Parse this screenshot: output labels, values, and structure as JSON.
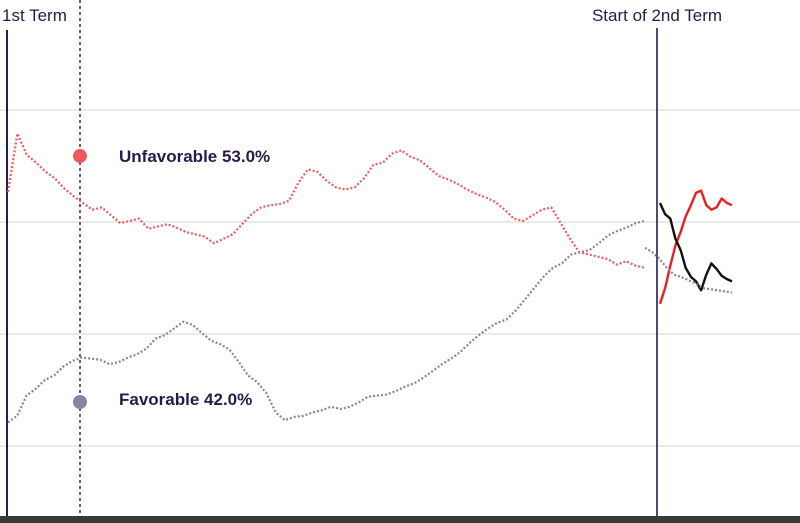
{
  "chart_data": {
    "type": "line",
    "title": "",
    "xlabel": "",
    "ylabel": "",
    "grid": true,
    "markers": [
      {
        "label": "1st Term"
      },
      {
        "label": "Start of 2nd Term"
      }
    ],
    "callouts": [
      {
        "series": "Unfavorable",
        "text": "Unfavorable 53.0%"
      },
      {
        "series": "Favorable",
        "text": "Favorable 42.0%"
      }
    ],
    "series": [
      {
        "name": "Unfavorable",
        "term": "first",
        "color": "#f05a5a",
        "style": "dotted",
        "values": [
          55.2,
          60.4,
          58.5,
          57.8,
          57.0,
          56.4,
          55.5,
          54.8,
          54.2,
          53.6,
          53.8,
          53.1,
          52.4,
          52.6,
          52.8,
          51.9,
          52.1,
          52.3,
          52.0,
          51.6,
          51.4,
          51.2,
          50.6,
          51.0,
          51.4,
          52.3,
          53.2,
          53.8,
          54.0,
          54.1,
          54.4,
          56.0,
          57.2,
          57.0,
          56.2,
          55.6,
          55.4,
          55.6,
          56.4,
          57.6,
          57.8,
          58.6,
          58.9,
          58.3,
          58.0,
          57.3,
          56.6,
          56.3,
          55.9,
          55.4,
          55.0,
          54.7,
          54.3,
          53.6,
          52.8,
          52.6,
          53.1,
          53.6,
          53.8,
          52.4,
          51.0,
          49.8,
          49.6,
          49.4,
          49.2,
          48.7,
          49.0,
          48.6,
          48.4
        ]
      },
      {
        "name": "Favorable",
        "term": "first",
        "color": "#8f7fa3",
        "style": "dotted",
        "values": [
          34.6,
          35.2,
          37.0,
          37.6,
          38.4,
          38.8,
          39.6,
          40.1,
          40.4,
          40.3,
          40.2,
          39.8,
          40.0,
          40.4,
          40.7,
          41.2,
          42.1,
          42.4,
          43.0,
          43.6,
          43.3,
          42.6,
          41.9,
          41.6,
          41.1,
          40.0,
          38.8,
          38.2,
          37.2,
          35.5,
          34.8,
          35.1,
          35.2,
          35.5,
          35.7,
          36.0,
          35.8,
          36.0,
          36.4,
          36.9,
          37.0,
          37.1,
          37.4,
          37.8,
          38.1,
          38.6,
          39.2,
          39.8,
          40.3,
          40.9,
          41.7,
          42.4,
          43.0,
          43.5,
          43.8,
          44.6,
          45.6,
          46.6,
          47.6,
          48.4,
          48.8,
          49.6,
          49.8,
          50.0,
          50.6,
          51.3,
          51.7,
          52.0,
          52.4,
          52.6
        ]
      },
      {
        "name": "Unfavorable",
        "term": "second",
        "color": "#e8201c",
        "style": "solid",
        "values": [
          45.2,
          46.6,
          48.6,
          50.4,
          51.6,
          53.0,
          54.0,
          55.1,
          55.3,
          54.0,
          53.6,
          53.8,
          54.6,
          54.2,
          54.0
        ]
      },
      {
        "name": "Favorable",
        "term": "second",
        "color": "#111111",
        "style": "solid",
        "values": [
          54.2,
          53.2,
          52.8,
          51.0,
          50.0,
          48.4,
          47.6,
          47.2,
          46.4,
          47.8,
          48.8,
          48.3,
          47.7,
          47.4,
          47.2
        ]
      },
      {
        "name": "Favorable (continuation)",
        "term": "second",
        "color": "#8f7fa3",
        "style": "dotted",
        "values": [
          50.2,
          49.8,
          49.2,
          48.4,
          47.8,
          47.6,
          47.3,
          47.0,
          46.6,
          46.5,
          46.4,
          46.3,
          46.2
        ]
      }
    ]
  }
}
